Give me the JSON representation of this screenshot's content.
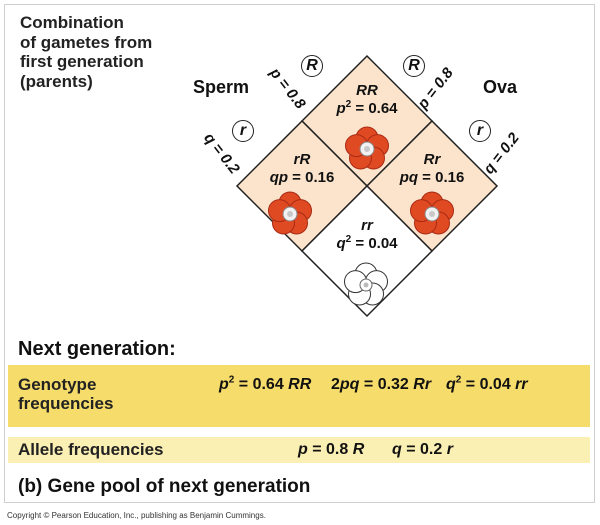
{
  "intro": {
    "line1": "Combination",
    "line2": "of gametes from",
    "line3": "first generation",
    "line4": "(parents)"
  },
  "sperm_label": "Sperm",
  "ova_label": "Ova",
  "sperm_alleles": [
    {
      "allele": "R",
      "freq": "p = 0.8"
    },
    {
      "allele": "r",
      "freq": "q = 0.2"
    }
  ],
  "ova_alleles": [
    {
      "allele": "R",
      "freq": "p = 0.8"
    },
    {
      "allele": "r",
      "freq": "q = 0.2"
    }
  ],
  "cells": {
    "RR": {
      "genotype": "RR",
      "expr": "p",
      "exp": "2",
      "value": " = 0.64",
      "flower": "red"
    },
    "rR": {
      "genotype": "rR",
      "expr": "qp",
      "value": " = 0.16",
      "flower": "red"
    },
    "Rr": {
      "genotype": "Rr",
      "expr": "pq",
      "value": " = 0.16",
      "flower": "red"
    },
    "rr": {
      "genotype": "rr",
      "expr": "q",
      "exp": "2",
      "value": " = 0.04",
      "flower": "white"
    }
  },
  "next_generation": "Next generation:",
  "genotype_label_1": "Genotype",
  "genotype_label_2": "frequencies",
  "genotype_freqs": [
    {
      "expr": "p",
      "exp": "2",
      "value": " = 0.64 ",
      "gt": "RR"
    },
    {
      "pre": "2",
      "expr": "pq",
      "value": " = 0.32 ",
      "gt": "Rr"
    },
    {
      "expr": "q",
      "exp": "2",
      "value": " = 0.04 ",
      "gt": "rr"
    }
  ],
  "allele_label": "Allele frequencies",
  "allele_freqs": [
    {
      "expr": "p",
      "value": " = 0.8 ",
      "al": "R"
    },
    {
      "expr": "q",
      "value": " = 0.2 ",
      "al": "r"
    }
  ],
  "footer_caption": "(b) Gene pool of next generation",
  "copyright": "Copyright © Pearson Education, Inc., publishing as Benjamin Cummings.",
  "colors": {
    "cell_fill": "#fbe3cc",
    "white_cell": "#ffffff",
    "band_genotype": "#f6dc6a",
    "band_allele": "#fbf0b4",
    "flower_red": "#e04a22",
    "flower_red_dark": "#b8301a",
    "flower_white": "#ffffff"
  }
}
